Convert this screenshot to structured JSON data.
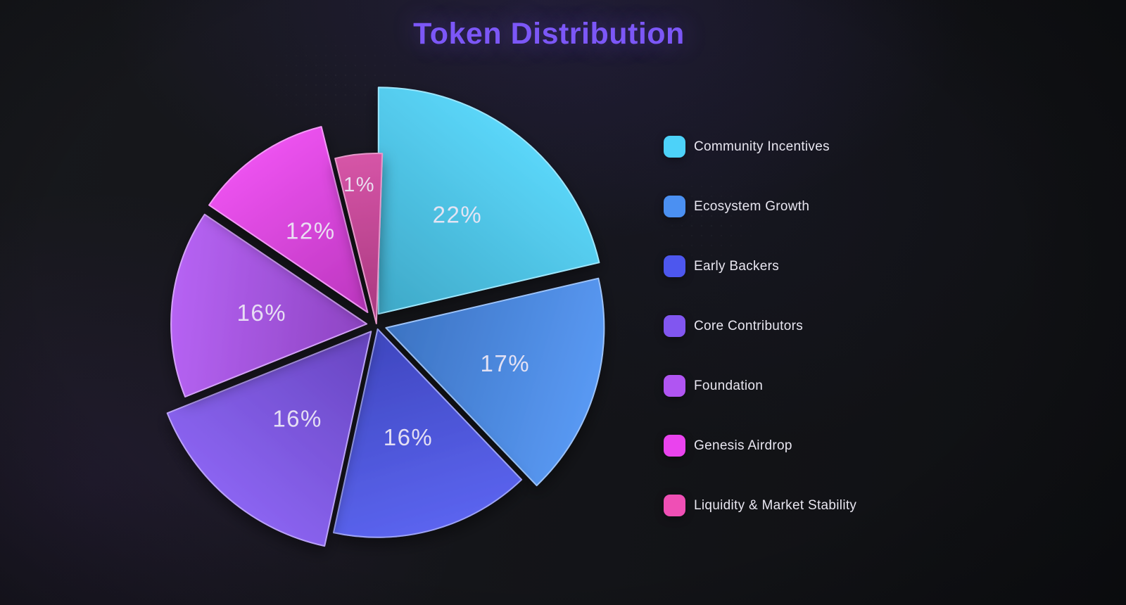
{
  "page": {
    "background_color": "#141519",
    "title_color": "#7C57F7",
    "label_text_color": "#EBE6F4",
    "legend_text_color": "#E9E7F1"
  },
  "chart_data": {
    "type": "pie",
    "title": "Token Distribution",
    "legend_position": "right",
    "total": 100,
    "start_angle_deg": 0,
    "direction": "clockwise",
    "slices": [
      {
        "label": "Community Incentives",
        "value": 22,
        "display": "22%",
        "color": "#4DD2F9"
      },
      {
        "label": "Ecosystem Growth",
        "value": 17,
        "display": "17%",
        "color": "#4B90F2"
      },
      {
        "label": "Early Backers",
        "value": 16,
        "display": "16%",
        "color": "#4D57EE"
      },
      {
        "label": "Core Contributors",
        "value": 16,
        "display": "16%",
        "color": "#8156F0"
      },
      {
        "label": "Foundation",
        "value": 16,
        "display": "16%",
        "color": "#B055F2"
      },
      {
        "label": "Genesis Airdrop",
        "value": 12,
        "display": "12%",
        "color": "#EA43EE"
      },
      {
        "label": "Liquidity & Market Stability",
        "value": 1,
        "display": "1%",
        "color": "#EF4FB5"
      }
    ]
  }
}
